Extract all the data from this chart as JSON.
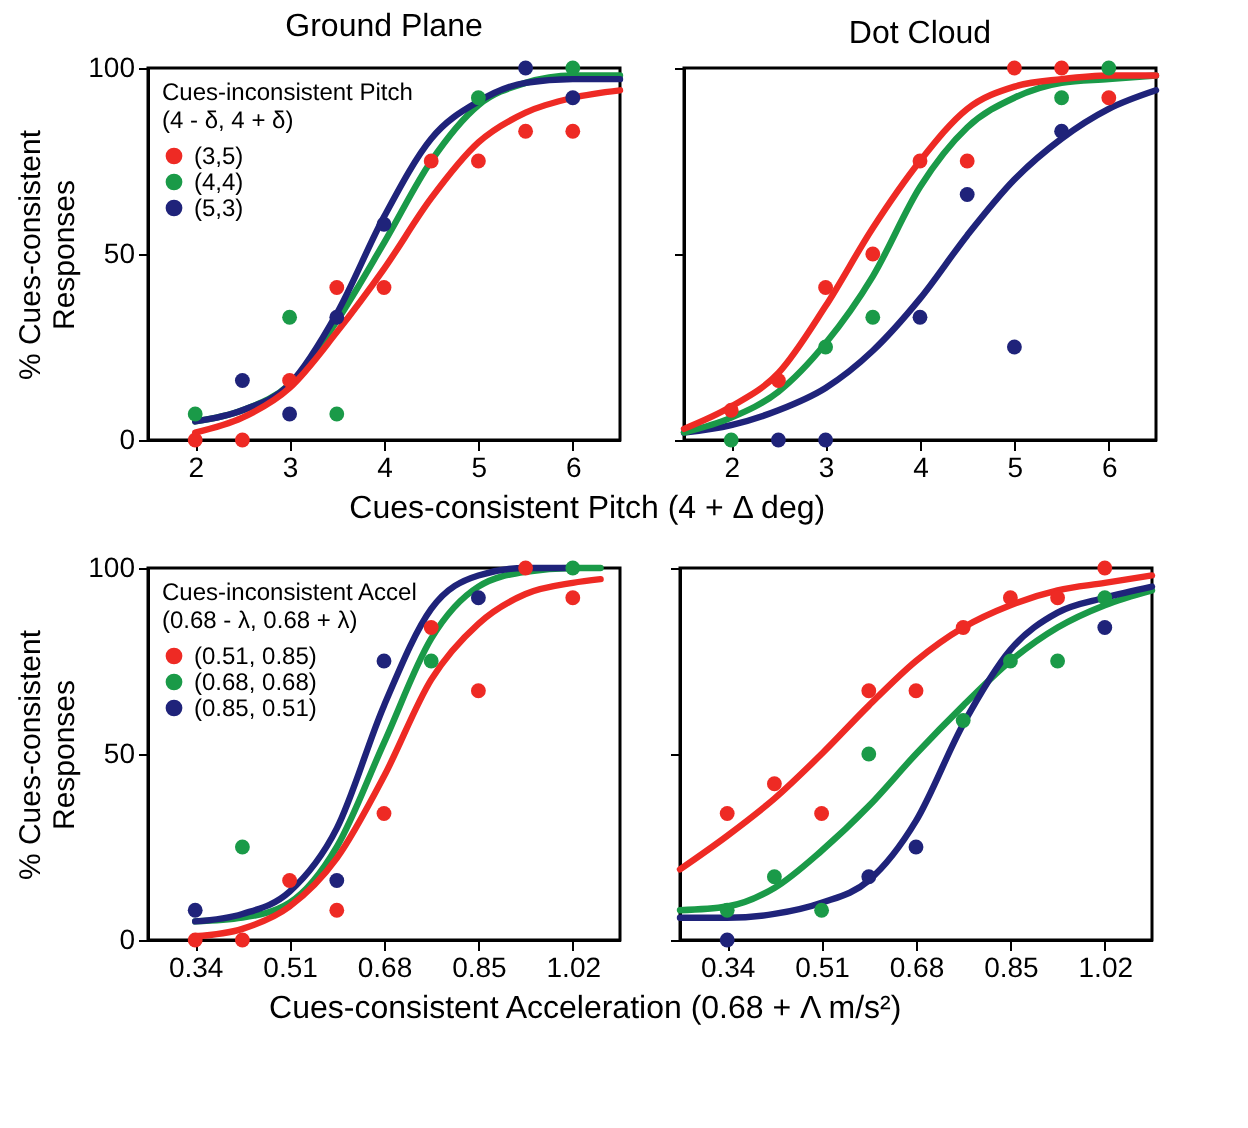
{
  "chart_data": [
    {
      "type": "scatter",
      "title": "Ground Plane",
      "ylabel": "% Cues-consistent\nResponses",
      "xlabel": "Cues-consistent Pitch (4 + Δ deg)",
      "legend_title": "Cues-inconsistent Pitch\n(4 - δ, 4 + δ)",
      "legend": "top left",
      "xlim": [
        1.5,
        6.5
      ],
      "ylim": [
        0,
        100
      ],
      "xticks": [
        2,
        3,
        4,
        5,
        6
      ],
      "yticks": [
        0,
        50,
        100
      ],
      "grid": false,
      "series": [
        {
          "name": "(3,5)",
          "color": "#ee2a24",
          "marker": "circle",
          "x": [
            2,
            2.5,
            3,
            3.5,
            4,
            4.5,
            5,
            5.5,
            6
          ],
          "values": [
            0,
            0,
            16,
            41,
            41,
            75,
            75,
            83,
            83
          ]
        },
        {
          "name": "(4,4)",
          "color": "#1a9a48",
          "marker": "circle",
          "x": [
            2,
            3,
            3.5,
            5,
            6
          ],
          "values": [
            7,
            33,
            7,
            92,
            100
          ]
        },
        {
          "name": "(5,3)",
          "color": "#1f237a",
          "marker": "circle",
          "x": [
            2.5,
            3,
            3.5,
            4,
            5.5,
            6
          ],
          "values": [
            16,
            7,
            33,
            58,
            100,
            92
          ]
        },
        {
          "type": "line",
          "color": "#1a9a48",
          "x": [
            2,
            2.5,
            3,
            3.5,
            4,
            4.5,
            5,
            5.5,
            6,
            6.5
          ],
          "values": [
            5,
            8,
            15,
            32,
            53,
            75,
            90,
            96,
            98,
            98
          ]
        },
        {
          "type": "line",
          "color": "#1f237a",
          "x": [
            2,
            2.5,
            3,
            3.5,
            4,
            4.5,
            5,
            5.5,
            6,
            6.5
          ],
          "values": [
            5,
            8,
            15,
            34,
            60,
            81,
            91,
            96,
            97,
            97
          ]
        },
        {
          "type": "line",
          "color": "#ee2a24",
          "x": [
            2,
            2.5,
            3,
            3.5,
            4,
            4.5,
            5,
            5.5,
            6,
            6.5
          ],
          "values": [
            2,
            6,
            14,
            29,
            46,
            65,
            80,
            88,
            92,
            94
          ]
        }
      ]
    },
    {
      "type": "scatter",
      "title": "Dot Cloud",
      "xlim": [
        1.5,
        6.5
      ],
      "ylim": [
        0,
        100
      ],
      "xticks": [
        2,
        3,
        4,
        5,
        6
      ],
      "yticks": [
        0,
        50,
        100
      ],
      "grid": false,
      "tick_labels": "x",
      "series": [
        {
          "color": "#ee2a24",
          "marker": "circle",
          "x": [
            2,
            2.5,
            3,
            3.5,
            4,
            4.5,
            5,
            5.5,
            6
          ],
          "values": [
            8,
            16,
            41,
            50,
            75,
            75,
            100,
            100,
            92
          ]
        },
        {
          "color": "#1a9a48",
          "marker": "circle",
          "x": [
            2,
            3,
            3.5,
            5.5,
            6
          ],
          "values": [
            0,
            25,
            33,
            92,
            100
          ]
        },
        {
          "color": "#1f237a",
          "marker": "circle",
          "x": [
            2.5,
            3,
            4,
            4.5,
            5,
            5.5
          ],
          "values": [
            0,
            0,
            33,
            66,
            25,
            83
          ]
        },
        {
          "type": "line",
          "color": "#1f237a",
          "x": [
            1.5,
            2,
            2.5,
            3,
            3.5,
            4,
            4.5,
            5,
            5.5,
            6,
            6.5
          ],
          "values": [
            2,
            4,
            8,
            14,
            24,
            38,
            55,
            70,
            81,
            89,
            94
          ]
        },
        {
          "type": "line",
          "color": "#1a9a48",
          "x": [
            1.5,
            2,
            2.5,
            3,
            3.5,
            4,
            4.5,
            5,
            5.5,
            6,
            6.5
          ],
          "values": [
            2,
            6,
            13,
            26,
            44,
            68,
            84,
            92,
            96,
            97,
            98
          ]
        },
        {
          "type": "line",
          "color": "#ee2a24",
          "x": [
            1.5,
            2,
            2.5,
            3,
            3.5,
            4,
            4.5,
            5,
            5.5,
            6,
            6.5
          ],
          "values": [
            3,
            9,
            18,
            36,
            57,
            75,
            89,
            95,
            97,
            98,
            98
          ]
        }
      ]
    },
    {
      "type": "scatter",
      "ylabel": "% Cues-consistent\nResponses",
      "xlabel": "Cues-consistent Acceleration (0.68 + Λ m/s²)",
      "legend_title": "Cues-inconsistent Accel\n(0.68 - λ, 0.68 + λ)",
      "legend": "top left",
      "xlim": [
        0.255,
        1.105
      ],
      "ylim": [
        0,
        100
      ],
      "xticks": [
        0.34,
        0.51,
        0.68,
        0.85,
        1.02
      ],
      "yticks": [
        0,
        50,
        100
      ],
      "grid": false,
      "series": [
        {
          "name": "(0.51, 0.85)",
          "color": "#ee2a24",
          "marker": "circle",
          "x": [
            0.34,
            0.425,
            0.51,
            0.595,
            0.68,
            0.765,
            0.85,
            0.935,
            1.02
          ],
          "values": [
            0,
            0,
            16,
            8,
            34,
            84,
            67,
            100,
            92
          ]
        },
        {
          "name": "(0.68, 0.68)",
          "color": "#1a9a48",
          "marker": "circle",
          "x": [
            0.425,
            0.765,
            1.02
          ],
          "values": [
            25,
            75,
            100
          ]
        },
        {
          "name": "(0.85, 0.51)",
          "color": "#1f237a",
          "marker": "circle",
          "x": [
            0.34,
            0.595,
            0.68,
            0.85
          ],
          "values": [
            8,
            16,
            75,
            92
          ]
        },
        {
          "type": "line",
          "color": "#1a9a48",
          "x": [
            0.34,
            0.425,
            0.51,
            0.595,
            0.68,
            0.765,
            0.85,
            0.935,
            1.02,
            1.07
          ],
          "values": [
            5,
            6,
            10,
            25,
            53,
            81,
            95,
            99,
            100,
            100
          ]
        },
        {
          "type": "line",
          "color": "#1f237a",
          "x": [
            0.34,
            0.425,
            0.51,
            0.595,
            0.68,
            0.765,
            0.85,
            0.935,
            1.02
          ],
          "values": [
            5,
            7,
            13,
            30,
            63,
            89,
            98,
            100,
            100
          ]
        },
        {
          "type": "line",
          "color": "#ee2a24",
          "x": [
            0.34,
            0.425,
            0.51,
            0.595,
            0.68,
            0.765,
            0.85,
            0.935,
            1.02,
            1.07
          ],
          "values": [
            1,
            3,
            9,
            22,
            44,
            70,
            85,
            93,
            96,
            97
          ]
        }
      ]
    },
    {
      "type": "scatter",
      "xlim": [
        0.255,
        1.105
      ],
      "ylim": [
        0,
        100
      ],
      "xticks": [
        0.34,
        0.51,
        0.68,
        0.85,
        1.02
      ],
      "yticks": [
        0,
        50,
        100
      ],
      "grid": false,
      "tick_labels": "x",
      "series": [
        {
          "color": "#ee2a24",
          "marker": "circle",
          "x": [
            0.34,
            0.425,
            0.51,
            0.595,
            0.68,
            0.765,
            0.85,
            0.935,
            1.02
          ],
          "values": [
            34,
            42,
            34,
            67,
            67,
            84,
            92,
            92,
            100
          ]
        },
        {
          "color": "#1a9a48",
          "marker": "circle",
          "x": [
            0.34,
            0.425,
            0.51,
            0.595,
            0.765,
            0.85,
            0.935,
            1.02
          ],
          "values": [
            8,
            17,
            8,
            50,
            59,
            75,
            75,
            92
          ]
        },
        {
          "color": "#1f237a",
          "marker": "circle",
          "x": [
            0.34,
            0.595,
            0.68,
            1.02
          ],
          "values": [
            0,
            17,
            25,
            84
          ]
        },
        {
          "type": "line",
          "color": "#ee2a24",
          "x": [
            0.255,
            0.34,
            0.425,
            0.51,
            0.595,
            0.68,
            0.765,
            0.85,
            0.935,
            1.02,
            1.105
          ],
          "values": [
            19,
            28,
            38,
            50,
            63,
            75,
            84,
            90,
            94,
            96,
            98
          ]
        },
        {
          "type": "line",
          "color": "#1a9a48",
          "x": [
            0.255,
            0.34,
            0.425,
            0.51,
            0.595,
            0.68,
            0.765,
            0.85,
            0.935,
            1.02,
            1.105
          ],
          "values": [
            8,
            9,
            14,
            24,
            36,
            50,
            63,
            75,
            84,
            90,
            94
          ]
        },
        {
          "type": "line",
          "color": "#1f237a",
          "x": [
            0.255,
            0.34,
            0.425,
            0.51,
            0.595,
            0.68,
            0.765,
            0.85,
            0.935,
            1.02,
            1.105
          ],
          "values": [
            6,
            6,
            7,
            10,
            16,
            32,
            58,
            78,
            88,
            92,
            95
          ]
        }
      ]
    }
  ]
}
